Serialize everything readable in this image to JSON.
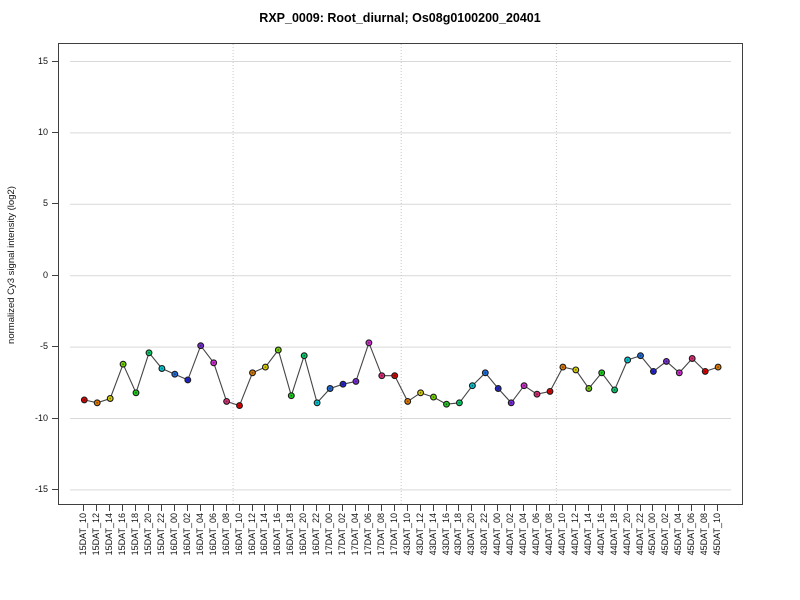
{
  "chart_data": {
    "type": "line",
    "title": "RXP_0009: Root_diurnal; Os08g0100200_20401",
    "xlabel": "",
    "ylabel": "normalized Cy3 signal intensity (log2)",
    "ylim": [
      -16.2,
      16.2
    ],
    "yticks": [
      15,
      10,
      5,
      0,
      -5,
      -10,
      -15
    ],
    "grid": "horizontal solid light-gray at each y tick; vertical dotted day-separator lines",
    "legend": "none",
    "x_tick_label_rotation": 90,
    "categories": [
      "15DAT_10",
      "15DAT_12",
      "15DAT_14",
      "15DAT_16",
      "15DAT_18",
      "15DAT_20",
      "15DAT_22",
      "16DAT_00",
      "16DAT_02",
      "16DAT_04",
      "16DAT_06",
      "16DAT_08",
      "16DAT_10",
      "16DAT_12",
      "16DAT_14",
      "16DAT_16",
      "16DAT_18",
      "16DAT_20",
      "16DAT_22",
      "17DAT_00",
      "17DAT_02",
      "17DAT_04",
      "17DAT_06",
      "17DAT_08",
      "17DAT_10",
      "43DAT_10",
      "43DAT_12",
      "43DAT_14",
      "43DAT_16",
      "43DAT_18",
      "43DAT_20",
      "43DAT_22",
      "44DAT_00",
      "44DAT_02",
      "44DAT_04",
      "44DAT_06",
      "44DAT_08",
      "44DAT_10",
      "44DAT_12",
      "44DAT_14",
      "44DAT_16",
      "44DAT_18",
      "44DAT_20",
      "44DAT_22",
      "45DAT_00",
      "45DAT_02",
      "45DAT_04",
      "45DAT_06",
      "45DAT_08",
      "45DAT_10"
    ],
    "values": [
      -8.7,
      -8.9,
      -8.6,
      -6.2,
      -8.2,
      -5.4,
      -6.5,
      -6.9,
      -7.3,
      -4.9,
      -6.1,
      -8.8,
      -9.1,
      -6.8,
      -6.4,
      -5.2,
      -8.4,
      -5.6,
      -8.9,
      -7.9,
      -7.6,
      -7.4,
      -4.7,
      -7.0,
      -7.0,
      -8.8,
      -8.2,
      -8.5,
      -9.0,
      -8.9,
      -7.7,
      -6.8,
      -7.9,
      -8.9,
      -7.7,
      -8.3,
      -8.1,
      -6.4,
      -6.6,
      -7.9,
      -6.8,
      -8.0,
      -5.9,
      -5.6,
      -6.7,
      -6.0,
      -6.8,
      -5.8,
      -6.7,
      -6.4
    ],
    "point_color_cycle_period": 12,
    "palette": [
      "#E00000",
      "#E17A00",
      "#D9CE00",
      "#74D600",
      "#1FCD1F",
      "#00CE6B",
      "#00C8D4",
      "#1E6FDF",
      "#2424D2",
      "#7A2BD9",
      "#D02ED0",
      "#DE2B78"
    ],
    "separators_after_0based_index": [
      11,
      24,
      36
    ],
    "separators_between": [
      [
        "16DAT_08",
        "16DAT_10"
      ],
      [
        "17DAT_10",
        "43DAT_10"
      ],
      [
        "44DAT_08",
        "44DAT_10"
      ]
    ],
    "colors": {
      "background": "#FFFFFF",
      "gridline": "#D9D9D9",
      "separator": "#C9C9C9",
      "series_line": "#454545",
      "marker_border": "#1C1C1C",
      "box_border": "#3F3F3F",
      "text": "#111111"
    }
  }
}
